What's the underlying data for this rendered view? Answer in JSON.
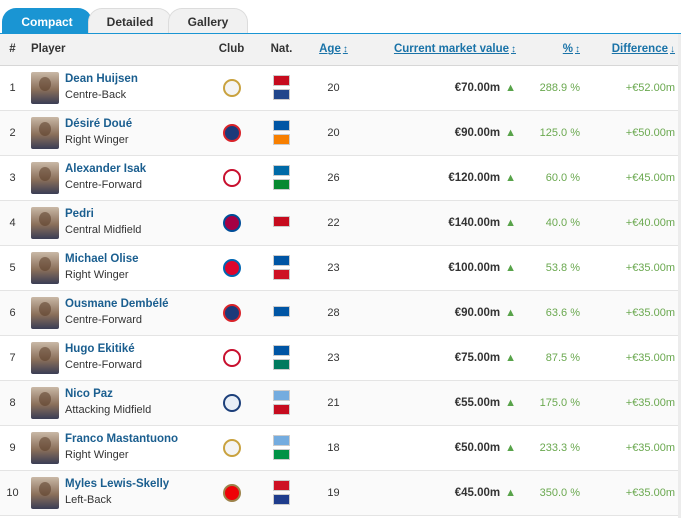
{
  "tabs": [
    "Compact",
    "Detailed",
    "Gallery"
  ],
  "headers": {
    "num": "#",
    "player": "Player",
    "club": "Club",
    "nat": "Nat.",
    "age": "Age",
    "value": "Current market value",
    "pct": "%",
    "diff": "Difference",
    "sort_both": "↕",
    "sort_down": "↓"
  },
  "icons": {
    "trend": "▲"
  },
  "rows": [
    {
      "num": "1",
      "name": "Dean Huijsen",
      "pos": "Centre-Back",
      "age": "20",
      "value": "€70.00m",
      "pct": "288.9 %",
      "diff": "+€52.00m",
      "club": "real-madrid",
      "clubColor": "#f4f4f4",
      "clubRing": "#c9a23f",
      "flags": [
        "#c60b1e",
        "#21468b"
      ]
    },
    {
      "num": "2",
      "name": "Désiré Doué",
      "pos": "Right Winger",
      "age": "20",
      "value": "€90.00m",
      "pct": "125.0 %",
      "diff": "+€50.00m",
      "club": "psg",
      "clubColor": "#1b3a7a",
      "clubRing": "#d8232a",
      "flags": [
        "#0055a4",
        "#f77f00"
      ]
    },
    {
      "num": "3",
      "name": "Alexander Isak",
      "pos": "Centre-Forward",
      "age": "26",
      "value": "€120.00m",
      "pct": "60.0 %",
      "diff": "+€45.00m",
      "club": "liverpool",
      "clubColor": "#fff",
      "clubRing": "#c8102e",
      "flags": [
        "#006aa7",
        "#078930"
      ]
    },
    {
      "num": "4",
      "name": "Pedri",
      "pos": "Central Midfield",
      "age": "22",
      "value": "€140.00m",
      "pct": "40.0 %",
      "diff": "+€40.00m",
      "club": "barcelona",
      "clubColor": "#a50044",
      "clubRing": "#004d98",
      "flags": [
        "#c60b1e"
      ]
    },
    {
      "num": "5",
      "name": "Michael Olise",
      "pos": "Right Winger",
      "age": "23",
      "value": "€100.00m",
      "pct": "53.8 %",
      "diff": "+€35.00m",
      "club": "bayern",
      "clubColor": "#dc052d",
      "clubRing": "#0066b2",
      "flags": [
        "#0055a4",
        "#ce1124"
      ]
    },
    {
      "num": "6",
      "name": "Ousmane Dembélé",
      "pos": "Centre-Forward",
      "age": "28",
      "value": "€90.00m",
      "pct": "63.6 %",
      "diff": "+€35.00m",
      "club": "psg",
      "clubColor": "#1b3a7a",
      "clubRing": "#d8232a",
      "flags": [
        "#0055a4"
      ]
    },
    {
      "num": "7",
      "name": "Hugo Ekitiké",
      "pos": "Centre-Forward",
      "age": "23",
      "value": "€75.00m",
      "pct": "87.5 %",
      "diff": "+€35.00m",
      "club": "liverpool",
      "clubColor": "#fff",
      "clubRing": "#c8102e",
      "flags": [
        "#0055a4",
        "#007a5e"
      ]
    },
    {
      "num": "8",
      "name": "Nico Paz",
      "pos": "Attacking Midfield",
      "age": "21",
      "value": "€55.00m",
      "pct": "175.0 %",
      "diff": "+€35.00m",
      "club": "como",
      "clubColor": "#e8eef6",
      "clubRing": "#1c3f7a",
      "flags": [
        "#74acdf",
        "#c60b1e"
      ]
    },
    {
      "num": "9",
      "name": "Franco Mastantuono",
      "pos": "Right Winger",
      "age": "18",
      "value": "€50.00m",
      "pct": "233.3 %",
      "diff": "+€35.00m",
      "club": "real-madrid",
      "clubColor": "#f4f4f4",
      "clubRing": "#c9a23f",
      "flags": [
        "#74acdf",
        "#009246"
      ]
    },
    {
      "num": "10",
      "name": "Myles Lewis-Skelly",
      "pos": "Left-Back",
      "age": "19",
      "value": "€45.00m",
      "pct": "350.0 %",
      "diff": "+€35.00m",
      "club": "arsenal",
      "clubColor": "#ef0107",
      "clubRing": "#9c824a",
      "flags": [
        "#ce1124",
        "#1e3c8c"
      ]
    }
  ]
}
